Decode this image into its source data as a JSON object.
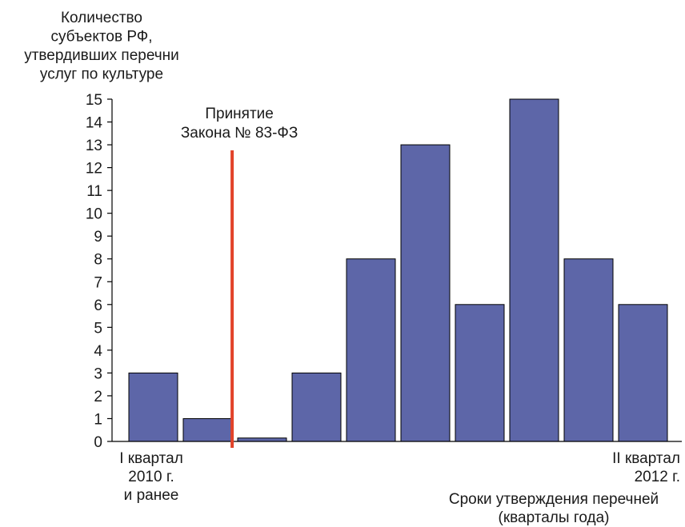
{
  "chart_data": {
    "type": "bar",
    "ylabel": [
      "Количество",
      "субъектов РФ,",
      "утвердивших перечни",
      "услуг по культуре"
    ],
    "xlabel": [
      "Сроки утверждения перечней",
      "(кварталы года)"
    ],
    "ylim": [
      0,
      15
    ],
    "yticks": [
      0,
      1,
      2,
      3,
      4,
      5,
      6,
      7,
      8,
      9,
      10,
      11,
      12,
      13,
      14,
      15
    ],
    "categories": [
      "I квартал 2010 г. и ранее",
      "",
      "",
      "",
      "",
      "",
      "",
      "",
      "",
      "II квартал 2012 г."
    ],
    "values": [
      3,
      1,
      0.15,
      3,
      8,
      13,
      6,
      15,
      8,
      6
    ],
    "first_category_label": [
      "I квартал",
      "2010 г.",
      "и ранее"
    ],
    "last_category_label": [
      "II квартал",
      "2012 г."
    ],
    "annotation": {
      "text": [
        "Принятие",
        "Закона № 83-ФЗ"
      ],
      "position_between_bars": 1.45
    },
    "colors": {
      "bar_fill": "#5d66a8",
      "bar_stroke": "#000000",
      "marker_line": "#e2432a",
      "axis": "#000000"
    },
    "grid": false,
    "legend": "none"
  }
}
